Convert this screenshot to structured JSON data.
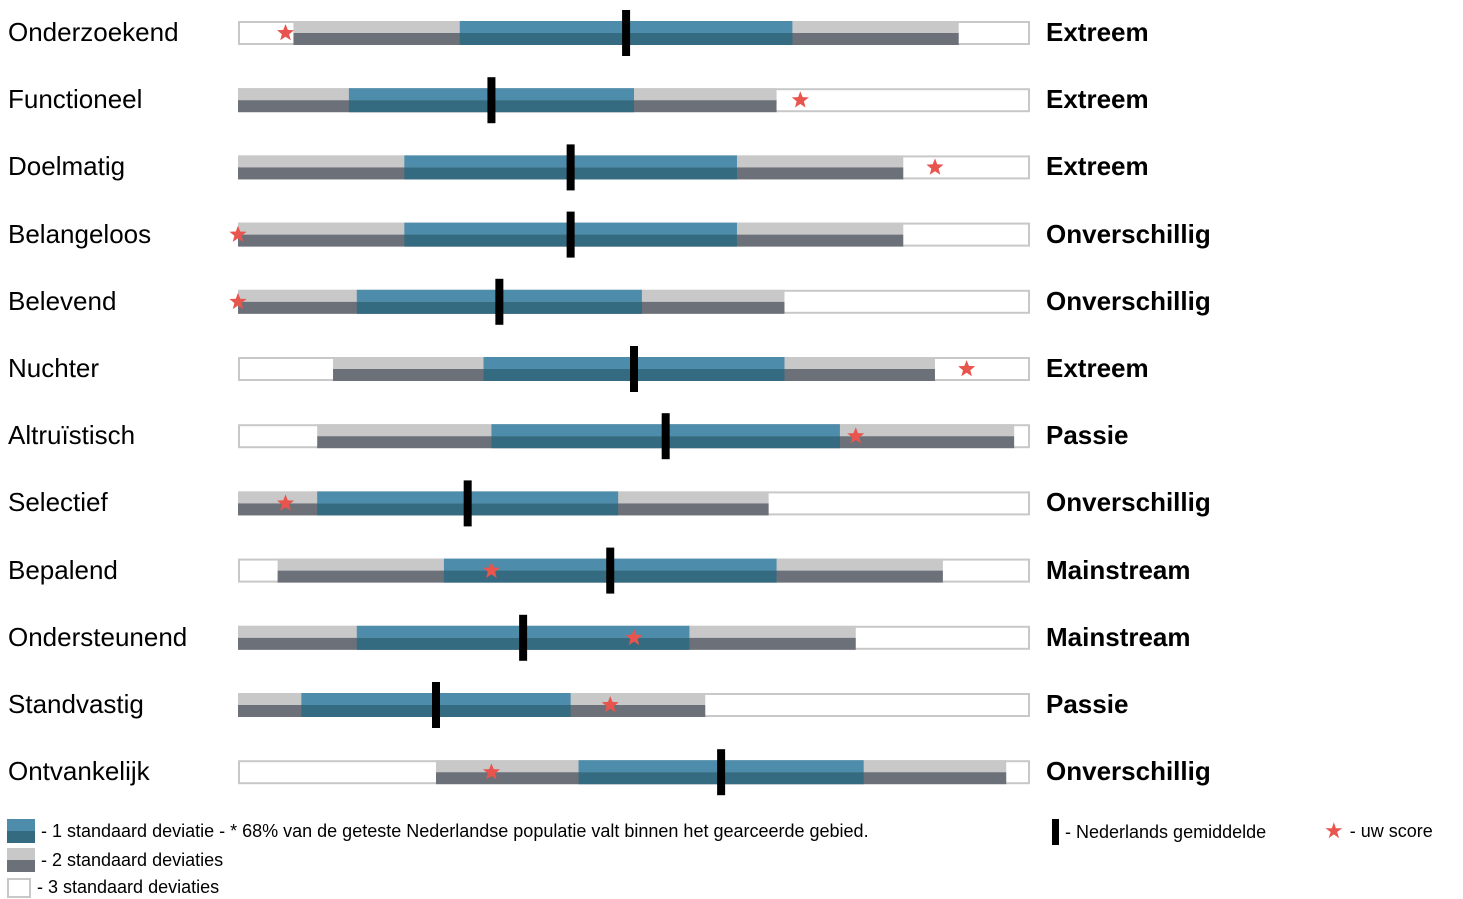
{
  "chart_data": {
    "type": "bar",
    "xlim": [
      0,
      100
    ],
    "colors": {
      "sd1_top": "#4d8dab",
      "sd1_bottom": "#356b81",
      "sd2_top": "#c8c8c8",
      "sd2_bottom": "#6c7078",
      "sd3_border": "#c8c8c8",
      "mean": "#000000",
      "score": "#e8554e"
    },
    "rows": [
      {
        "label": "Onderzoekend",
        "level": "Extreem",
        "sd3": [
          0,
          100
        ],
        "sd2": [
          7,
          91
        ],
        "sd1": [
          28,
          70
        ],
        "mean": 49,
        "score": 6
      },
      {
        "label": "Functioneel",
        "level": "Extreem",
        "sd3": [
          0,
          100
        ],
        "sd2": [
          0,
          68
        ],
        "sd1": [
          14,
          50
        ],
        "mean": 32,
        "score": 71
      },
      {
        "label": "Doelmatig",
        "level": "Extreem",
        "sd3": [
          0,
          100
        ],
        "sd2": [
          0,
          84
        ],
        "sd1": [
          21,
          63
        ],
        "mean": 42,
        "score": 88
      },
      {
        "label": "Belangeloos",
        "level": "Onverschillig",
        "sd3": [
          0,
          100
        ],
        "sd2": [
          0,
          84
        ],
        "sd1": [
          21,
          63
        ],
        "mean": 42,
        "score": 0
      },
      {
        "label": "Belevend",
        "level": "Onverschillig",
        "sd3": [
          0,
          100
        ],
        "sd2": [
          0,
          69
        ],
        "sd1": [
          15,
          51
        ],
        "mean": 33,
        "score": 0
      },
      {
        "label": "Nuchter",
        "level": "Extreem",
        "sd3": [
          0,
          100
        ],
        "sd2": [
          12,
          88
        ],
        "sd1": [
          31,
          69
        ],
        "mean": 50,
        "score": 92
      },
      {
        "label": "Altruïstisch",
        "level": "Passie",
        "sd3": [
          0,
          100
        ],
        "sd2": [
          10,
          98
        ],
        "sd1": [
          32,
          76
        ],
        "mean": 54,
        "score": 78
      },
      {
        "label": "Selectief",
        "level": "Onverschillig",
        "sd3": [
          0,
          100
        ],
        "sd2": [
          0,
          67
        ],
        "sd1": [
          10,
          48
        ],
        "mean": 29,
        "score": 6
      },
      {
        "label": "Bepalend",
        "level": "Mainstream",
        "sd3": [
          0,
          100
        ],
        "sd2": [
          5,
          89
        ],
        "sd1": [
          26,
          68
        ],
        "mean": 47,
        "score": 32
      },
      {
        "label": "Ondersteunend",
        "level": "Mainstream",
        "sd3": [
          0,
          100
        ],
        "sd2": [
          0,
          78
        ],
        "sd1": [
          15,
          57
        ],
        "mean": 36,
        "score": 50
      },
      {
        "label": "Standvastig",
        "level": "Passie",
        "sd3": [
          0,
          100
        ],
        "sd2": [
          0,
          59
        ],
        "sd1": [
          8,
          42
        ],
        "mean": 25,
        "score": 47
      },
      {
        "label": "Ontvankelijk",
        "level": "Onverschillig",
        "sd3": [
          0,
          100
        ],
        "sd2": [
          25,
          97
        ],
        "sd1": [
          43,
          79
        ],
        "mean": 61,
        "score": 32
      }
    ]
  },
  "legend": {
    "sd1": "- 1 standaard deviatie - * 68% van de geteste Nederlandse populatie valt binnen het gearceerde gebied.",
    "mean": "- Nederlands gemiddelde",
    "score": "- uw score",
    "sd2": "- 2 standaard deviaties",
    "sd3": "- 3 standaard deviaties"
  }
}
